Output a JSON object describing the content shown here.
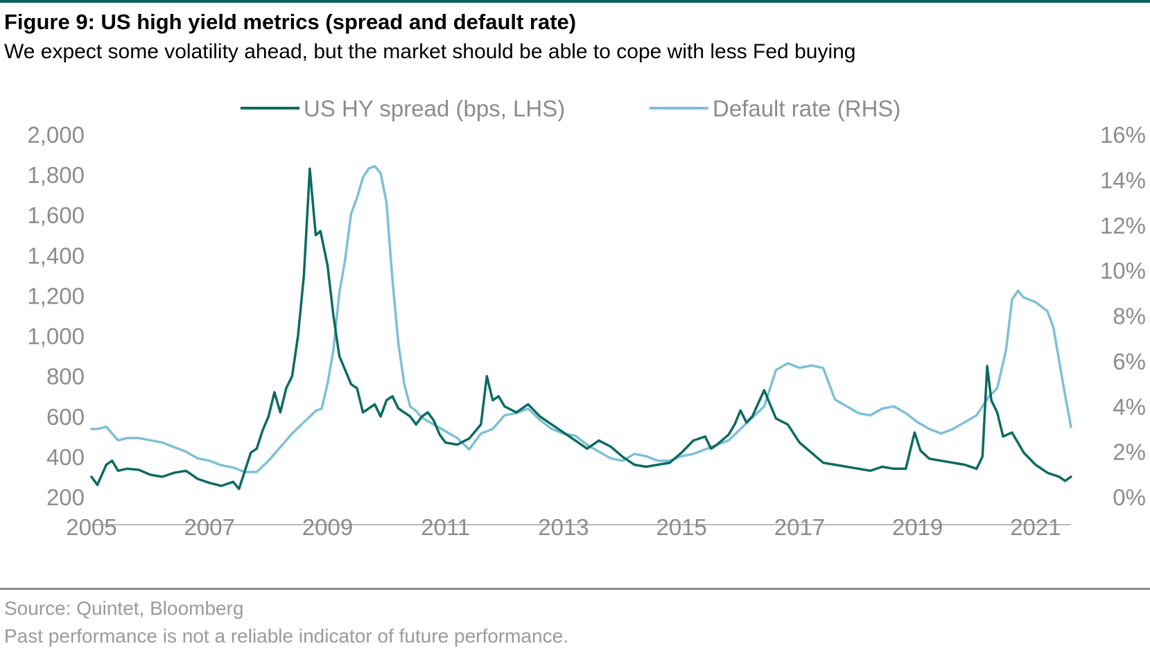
{
  "header": {
    "title": "Figure 9: US high yield metrics (spread and default rate)",
    "subtitle": "We expect some volatility ahead, but the market should be able to cope with less Fed buying"
  },
  "footer": {
    "source": "Source: Quintet, Bloomberg",
    "disclaimer": "Past performance is not a reliable indicator of future performance."
  },
  "colors": {
    "spread": "#0b6b62",
    "default_rate": "#7ebfd7",
    "axis_text": "#8c8c8c",
    "axis_line": "#b8b8b8",
    "top_rule": "#0b5f5a"
  },
  "chart_data": {
    "type": "line",
    "legend_position": "top-center",
    "grid": false,
    "x_axis": {
      "ticks": [
        "2005",
        "2007",
        "2009",
        "2011",
        "2013",
        "2015",
        "2017",
        "2019",
        "2021"
      ],
      "range": [
        2005.0,
        2021.6
      ]
    },
    "y_left": {
      "ticks": [
        "2,000",
        "1,800",
        "1,600",
        "1,400",
        "1,200",
        "1,000",
        "800",
        "600",
        "400",
        "200"
      ],
      "range": [
        200,
        2000
      ]
    },
    "y_right": {
      "ticks": [
        "16%",
        "14%",
        "12%",
        "10%",
        "8%",
        "6%",
        "4%",
        "2%",
        "0%"
      ],
      "range": [
        0,
        16
      ]
    },
    "series": [
      {
        "name": "US HY spread (bps, LHS)",
        "axis": "left",
        "x": [
          2005.0,
          2005.1,
          2005.25,
          2005.35,
          2005.45,
          2005.6,
          2005.8,
          2006.0,
          2006.2,
          2006.4,
          2006.6,
          2006.8,
          2007.0,
          2007.2,
          2007.4,
          2007.5,
          2007.6,
          2007.7,
          2007.8,
          2007.9,
          2008.0,
          2008.1,
          2008.2,
          2008.3,
          2008.4,
          2008.5,
          2008.6,
          2008.7,
          2008.8,
          2008.88,
          2009.0,
          2009.1,
          2009.2,
          2009.3,
          2009.4,
          2009.5,
          2009.6,
          2009.7,
          2009.8,
          2009.9,
          2010.0,
          2010.1,
          2010.2,
          2010.3,
          2010.4,
          2010.5,
          2010.6,
          2010.7,
          2010.8,
          2010.9,
          2011.0,
          2011.2,
          2011.4,
          2011.6,
          2011.7,
          2011.8,
          2011.9,
          2012.0,
          2012.2,
          2012.4,
          2012.6,
          2012.8,
          2013.0,
          2013.2,
          2013.4,
          2013.6,
          2013.8,
          2014.0,
          2014.2,
          2014.4,
          2014.6,
          2014.8,
          2015.0,
          2015.2,
          2015.4,
          2015.5,
          2015.6,
          2015.8,
          2015.9,
          2016.0,
          2016.1,
          2016.2,
          2016.4,
          2016.6,
          2016.8,
          2017.0,
          2017.2,
          2017.4,
          2017.6,
          2017.8,
          2018.0,
          2018.2,
          2018.4,
          2018.6,
          2018.8,
          2018.95,
          2019.05,
          2019.2,
          2019.4,
          2019.6,
          2019.8,
          2020.0,
          2020.1,
          2020.18,
          2020.25,
          2020.35,
          2020.45,
          2020.6,
          2020.8,
          2021.0,
          2021.2,
          2021.4,
          2021.5,
          2021.6
        ],
        "values": [
          300,
          260,
          360,
          380,
          330,
          340,
          335,
          310,
          300,
          320,
          330,
          290,
          270,
          255,
          275,
          240,
          330,
          420,
          440,
          530,
          600,
          720,
          620,
          740,
          800,
          1000,
          1300,
          1830,
          1500,
          1520,
          1350,
          1100,
          900,
          830,
          760,
          740,
          620,
          640,
          660,
          600,
          680,
          700,
          640,
          620,
          600,
          560,
          600,
          620,
          580,
          510,
          470,
          460,
          490,
          560,
          800,
          680,
          700,
          650,
          620,
          660,
          600,
          560,
          520,
          480,
          440,
          480,
          450,
          400,
          360,
          350,
          360,
          370,
          420,
          480,
          500,
          440,
          460,
          510,
          560,
          630,
          570,
          600,
          730,
          590,
          560,
          470,
          420,
          370,
          360,
          350,
          340,
          330,
          350,
          340,
          340,
          520,
          430,
          390,
          380,
          370,
          360,
          340,
          400,
          850,
          680,
          620,
          500,
          520,
          420,
          360,
          320,
          300,
          280,
          300
        ]
      },
      {
        "name": "Default rate (RHS)",
        "axis": "right",
        "x": [
          2005.0,
          2005.1,
          2005.25,
          2005.45,
          2005.6,
          2005.8,
          2006.0,
          2006.2,
          2006.4,
          2006.6,
          2006.8,
          2007.0,
          2007.2,
          2007.4,
          2007.6,
          2007.8,
          2008.0,
          2008.2,
          2008.4,
          2008.6,
          2008.8,
          2008.9,
          2009.0,
          2009.1,
          2009.2,
          2009.3,
          2009.4,
          2009.5,
          2009.6,
          2009.7,
          2009.8,
          2009.9,
          2010.0,
          2010.1,
          2010.2,
          2010.3,
          2010.4,
          2010.5,
          2010.6,
          2010.8,
          2011.0,
          2011.2,
          2011.4,
          2011.6,
          2011.8,
          2012.0,
          2012.2,
          2012.4,
          2012.6,
          2012.8,
          2013.0,
          2013.2,
          2013.4,
          2013.6,
          2013.8,
          2014.0,
          2014.2,
          2014.4,
          2014.6,
          2014.8,
          2015.0,
          2015.2,
          2015.4,
          2015.6,
          2015.8,
          2016.0,
          2016.2,
          2016.4,
          2016.6,
          2016.8,
          2017.0,
          2017.2,
          2017.4,
          2017.6,
          2017.8,
          2018.0,
          2018.2,
          2018.4,
          2018.6,
          2018.8,
          2019.0,
          2019.2,
          2019.4,
          2019.6,
          2019.8,
          2020.0,
          2020.2,
          2020.35,
          2020.5,
          2020.6,
          2020.7,
          2020.8,
          2021.0,
          2021.2,
          2021.3,
          2021.4,
          2021.5,
          2021.6
        ],
        "values": [
          3.0,
          3.0,
          3.1,
          2.5,
          2.6,
          2.6,
          2.5,
          2.4,
          2.2,
          2.0,
          1.7,
          1.6,
          1.4,
          1.3,
          1.1,
          1.1,
          1.6,
          2.2,
          2.8,
          3.3,
          3.8,
          3.9,
          5.0,
          6.5,
          9.0,
          10.5,
          12.5,
          13.2,
          14.1,
          14.5,
          14.6,
          14.3,
          13.0,
          9.6,
          6.8,
          5.0,
          4.0,
          3.8,
          3.5,
          3.2,
          2.9,
          2.6,
          2.1,
          2.8,
          3.0,
          3.6,
          3.7,
          3.9,
          3.4,
          3.0,
          2.8,
          2.7,
          2.3,
          2.0,
          1.7,
          1.6,
          1.9,
          1.8,
          1.6,
          1.6,
          1.8,
          1.9,
          2.1,
          2.3,
          2.5,
          3.0,
          3.5,
          4.0,
          5.6,
          5.9,
          5.7,
          5.8,
          5.7,
          4.3,
          4.0,
          3.7,
          3.6,
          3.9,
          4.0,
          3.7,
          3.3,
          3.0,
          2.8,
          3.0,
          3.3,
          3.6,
          4.4,
          4.8,
          6.5,
          8.7,
          9.1,
          8.8,
          8.6,
          8.2,
          7.5,
          6.0,
          4.5,
          3.1
        ]
      }
    ]
  }
}
